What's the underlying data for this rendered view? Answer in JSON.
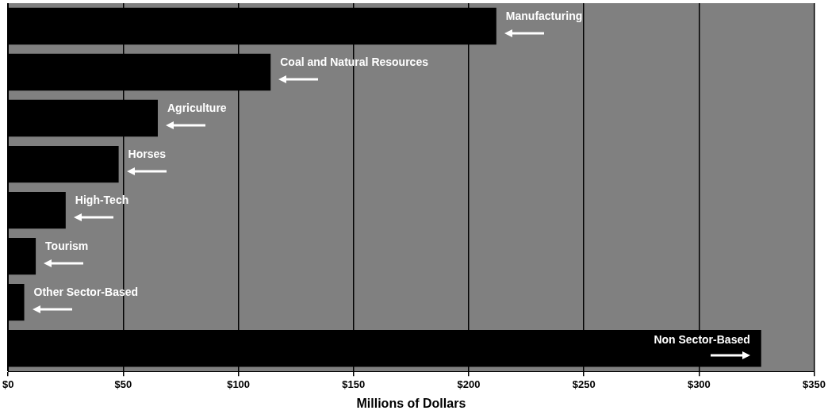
{
  "chart_data": {
    "type": "bar",
    "orientation": "horizontal",
    "xlabel": "Millions of Dollars",
    "categories": [
      "Manufacturing",
      "Coal and Natural Resources",
      "Agriculture",
      "Horses",
      "High-Tech",
      "Tourism",
      "Other Sector-Based",
      "Non Sector-Based"
    ],
    "values": [
      212,
      114,
      65,
      48,
      25,
      12,
      7,
      327
    ],
    "color": "#000000",
    "xlim": [
      0,
      350
    ],
    "xticks": [
      {
        "value": 0,
        "label": "$0"
      },
      {
        "value": 50,
        "label": "$50"
      },
      {
        "value": 100,
        "label": "$100"
      },
      {
        "value": 150,
        "label": "$150"
      },
      {
        "value": 200,
        "label": "$200"
      },
      {
        "value": 250,
        "label": "$250"
      },
      {
        "value": 300,
        "label": "$300"
      },
      {
        "value": 350,
        "label": "$350"
      }
    ],
    "grid": "x",
    "legend": false,
    "tick_labels": "x"
  }
}
